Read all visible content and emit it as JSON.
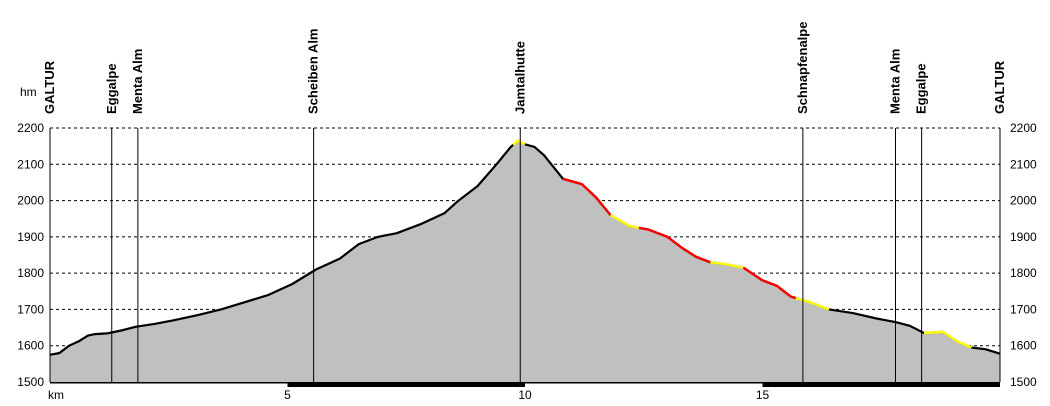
{
  "chart_data": {
    "type": "area",
    "title": "",
    "xlabel": "km",
    "ylabel": "hm",
    "xlim": [
      0,
      20
    ],
    "ylim": [
      1500,
      2200
    ],
    "x_ticks": [
      5,
      10,
      15
    ],
    "y_ticks": [
      1500,
      1600,
      1700,
      1800,
      1900,
      2000,
      2100,
      2200
    ],
    "grid": "horizontal dashed",
    "fill_color": "#c0c0c0",
    "line_color": "#000000",
    "highlight_colors": {
      "yellow": "#ffff00",
      "red": "#ff0000"
    },
    "profile": {
      "x": [
        0,
        0.2,
        0.4,
        0.6,
        0.8,
        0.95,
        1.2,
        1.5,
        1.8,
        2.2,
        2.6,
        3.1,
        3.6,
        4.1,
        4.6,
        5.1,
        5.6,
        6.1,
        6.5,
        6.9,
        7.3,
        7.8,
        8.3,
        8.6,
        9.0,
        9.4,
        9.7,
        9.85,
        10.0,
        10.2,
        10.4,
        10.8,
        11.2,
        11.5,
        11.8,
        12.2,
        12.6,
        13.0,
        13.3,
        13.6,
        13.9,
        14.2,
        14.6,
        15.0,
        15.3,
        15.6,
        16.0,
        16.4,
        16.9,
        17.4,
        17.8,
        18.1,
        18.4,
        18.8,
        19.1,
        19.4,
        19.7,
        20.0
      ],
      "elevation": [
        1575,
        1580,
        1600,
        1612,
        1628,
        1632,
        1634,
        1642,
        1652,
        1660,
        1670,
        1684,
        1700,
        1720,
        1740,
        1770,
        1810,
        1840,
        1880,
        1900,
        1910,
        1935,
        1965,
        2000,
        2040,
        2100,
        2148,
        2165,
        2155,
        2148,
        2125,
        2060,
        2045,
        2008,
        1960,
        1930,
        1920,
        1900,
        1870,
        1845,
        1830,
        1825,
        1815,
        1780,
        1765,
        1735,
        1720,
        1700,
        1690,
        1675,
        1665,
        1655,
        1635,
        1638,
        1612,
        1595,
        1590,
        1578
      ]
    },
    "highlight_segments": [
      {
        "color": "yellow",
        "x_start": 9.75,
        "x_end": 10.0
      },
      {
        "color": "red",
        "x_start": 10.8,
        "x_end": 11.8
      },
      {
        "color": "yellow",
        "x_start": 11.8,
        "x_end": 12.4
      },
      {
        "color": "red",
        "x_start": 12.4,
        "x_end": 13.9
      },
      {
        "color": "yellow",
        "x_start": 13.9,
        "x_end": 14.6
      },
      {
        "color": "red",
        "x_start": 14.6,
        "x_end": 15.7
      },
      {
        "color": "yellow",
        "x_start": 15.7,
        "x_end": 16.4
      },
      {
        "color": "yellow",
        "x_start": 18.4,
        "x_end": 19.4
      }
    ],
    "waypoints": [
      {
        "name": "GALTUR",
        "km": 0
      },
      {
        "name": "Eggalpe",
        "km": 1.3
      },
      {
        "name": "Menta Alm",
        "km": 1.85
      },
      {
        "name": "Scheiben Alm",
        "km": 5.55
      },
      {
        "name": "Jamtalhutte",
        "km": 9.9
      },
      {
        "name": "Schnapfenalpe",
        "km": 15.85
      },
      {
        "name": "Menta Alm",
        "km": 17.8
      },
      {
        "name": "Eggalpe",
        "km": 18.35
      },
      {
        "name": "GALTUR",
        "km": 20
      }
    ]
  }
}
